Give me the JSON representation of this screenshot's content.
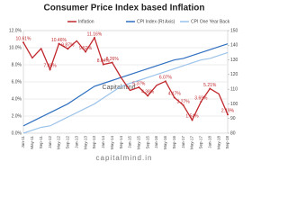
{
  "chart_data": {
    "type": "line",
    "title": "Consumer  Price Index based Inflation",
    "watermark": "Capitalmind",
    "footer": "capitalmind.in",
    "categories": [
      "Jan-11",
      "May-11",
      "Sep-11",
      "Jan-12",
      "May-12",
      "Sep-12",
      "Jan-13",
      "May-13",
      "Sep-13",
      "Jan-14",
      "May-14",
      "Sep-14",
      "Jan-15",
      "May-15",
      "Sep-15",
      "Jan-16",
      "May-16",
      "Sep-16",
      "Jan-17",
      "May-17",
      "Sep-17",
      "Jan-18",
      "May-18",
      "Sep-18"
    ],
    "series": [
      {
        "name": "Inflation",
        "color": "#c0282d",
        "axis": "y",
        "values": [
          10.61,
          8.8,
          9.9,
          7.45,
          10.46,
          9.87,
          10.8,
          9.52,
          11.16,
          8.04,
          8.26,
          6.5,
          5.0,
          5.37,
          4.38,
          5.6,
          6.07,
          4.17,
          3.27,
          1.54,
          3.69,
          5.21,
          4.6,
          2.19
        ],
        "value_labels": [
          "10.61%",
          null,
          null,
          "7.45%",
          "10.46%",
          "9.87%",
          null,
          "9.52%",
          "11.16%",
          "8.04%",
          "8.26%",
          null,
          null,
          "5.37%",
          "4.38%",
          null,
          "6.07%",
          "4.17%",
          "3.27%",
          "1.54%",
          "3.69%",
          "5.21%",
          null,
          "2.19%"
        ]
      },
      {
        "name": "CPI Index (Rt Axis)",
        "color": "#2e6fc0",
        "axis": "y2",
        "values": [
          85,
          88,
          91,
          94,
          97,
          100,
          104,
          108,
          112,
          114,
          116,
          118,
          120,
          122,
          124,
          126,
          128,
          130,
          131,
          133,
          135,
          137,
          139,
          141
        ]
      },
      {
        "name": "CPI One Year Back",
        "color": "#9cc3ea",
        "axis": "y2",
        "values": [
          80,
          82,
          84,
          85,
          88,
          91,
          94,
          97,
          100,
          104,
          108,
          112,
          114,
          116,
          118,
          120,
          122,
          124,
          126,
          128,
          130,
          131,
          133,
          135
        ]
      }
    ],
    "ylim": [
      0,
      12
    ],
    "yticks": [
      {
        "value": 0,
        "label": "0.0%"
      },
      {
        "value": 2,
        "label": "2.0%"
      },
      {
        "value": 4,
        "label": "4.0%"
      },
      {
        "value": 6,
        "label": "6.0%"
      },
      {
        "value": 8,
        "label": "8.0%"
      },
      {
        "value": 10,
        "label": "10.0%"
      },
      {
        "value": 12,
        "label": "12.0%"
      }
    ],
    "y2lim": [
      80,
      150
    ],
    "y2ticks": [
      80,
      90,
      100,
      110,
      120,
      130,
      140,
      150
    ],
    "grid": true
  }
}
